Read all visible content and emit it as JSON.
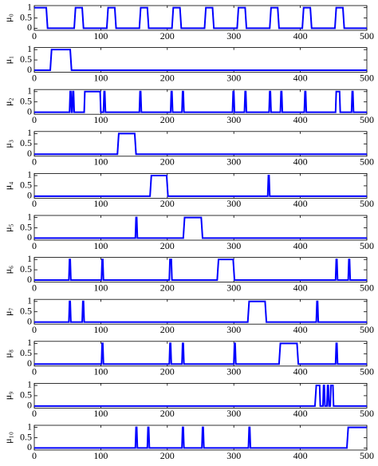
{
  "chart_data": [
    {
      "type": "line",
      "ylabel": "μ₀",
      "xlim": [
        0,
        500
      ],
      "ylim": [
        -0.1,
        1.1
      ],
      "xticks": [
        0,
        100,
        200,
        300,
        400,
        500
      ],
      "yticks": [
        0,
        0.5,
        1
      ],
      "x": [
        0,
        18,
        20,
        60,
        62,
        72,
        74,
        109,
        111,
        121,
        123,
        158,
        160,
        170,
        172,
        207,
        209,
        219,
        221,
        256,
        258,
        268,
        270,
        305,
        307,
        317,
        319,
        354,
        356,
        366,
        368,
        403,
        405,
        415,
        417,
        452,
        454,
        464,
        466,
        500
      ],
      "series": [
        {
          "color": "#0000ff",
          "values": [
            1,
            1,
            0,
            0,
            1,
            1,
            0,
            0,
            1,
            1,
            0,
            0,
            1,
            1,
            0,
            0,
            1,
            1,
            0,
            0,
            1,
            1,
            0,
            0,
            1,
            1,
            0,
            0,
            1,
            1,
            0,
            0,
            1,
            1,
            0,
            0,
            1,
            1,
            0,
            0
          ]
        }
      ]
    },
    {
      "type": "line",
      "ylabel": "μ₁",
      "xlim": [
        0,
        500
      ],
      "ylim": [
        -0.1,
        1.1
      ],
      "xticks": [
        0,
        100,
        200,
        300,
        400,
        500
      ],
      "yticks": [
        0,
        0.5,
        1
      ],
      "x": [
        0,
        24,
        26,
        54,
        56,
        500
      ],
      "series": [
        {
          "color": "#0000ff",
          "values": [
            0,
            0,
            1,
            1,
            0,
            0
          ]
        }
      ]
    },
    {
      "type": "line",
      "ylabel": "μ₂",
      "xlim": [
        0,
        500
      ],
      "ylim": [
        -0.1,
        1.1
      ],
      "xticks": [
        0,
        100,
        200,
        300,
        400,
        500
      ],
      "yticks": [
        0,
        0.5,
        1
      ],
      "x": [
        0,
        53,
        54,
        55,
        56,
        57,
        58,
        59,
        60,
        75,
        76,
        99,
        100,
        104,
        105,
        106,
        107,
        158,
        159,
        160,
        161,
        205,
        206,
        207,
        208,
        222,
        223,
        224,
        225,
        298,
        299,
        300,
        301,
        316,
        317,
        318,
        319,
        353,
        354,
        355,
        356,
        370,
        371,
        372,
        373,
        406,
        407,
        408,
        409,
        453,
        454,
        459,
        460,
        477,
        478,
        479,
        480,
        500
      ],
      "series": [
        {
          "color": "#0000ff",
          "values": [
            0,
            0,
            1,
            1,
            0,
            0,
            1,
            1,
            0,
            0,
            1,
            1,
            0,
            0,
            1,
            1,
            0,
            0,
            1,
            1,
            0,
            0,
            1,
            1,
            0,
            0,
            1,
            1,
            0,
            0,
            1,
            1,
            0,
            0,
            1,
            1,
            0,
            0,
            1,
            1,
            0,
            0,
            1,
            1,
            0,
            0,
            1,
            1,
            0,
            0,
            1,
            1,
            0,
            0,
            1,
            1,
            0,
            0
          ]
        }
      ]
    },
    {
      "type": "line",
      "ylabel": "μ₃",
      "xlim": [
        0,
        500
      ],
      "ylim": [
        -0.1,
        1.1
      ],
      "xticks": [
        0,
        100,
        200,
        300,
        400,
        500
      ],
      "yticks": [
        0,
        0.5,
        1
      ],
      "x": [
        0,
        125,
        127,
        151,
        153,
        500
      ],
      "series": [
        {
          "color": "#0000ff",
          "values": [
            0,
            0,
            1,
            1,
            0,
            0
          ]
        }
      ]
    },
    {
      "type": "line",
      "ylabel": "μ₄",
      "xlim": [
        0,
        500
      ],
      "ylim": [
        -0.1,
        1.1
      ],
      "xticks": [
        0,
        100,
        200,
        300,
        400,
        500
      ],
      "yticks": [
        0,
        0.5,
        1
      ],
      "x": [
        0,
        174,
        176,
        199,
        201,
        351,
        352,
        353,
        354,
        500
      ],
      "series": [
        {
          "color": "#0000ff",
          "values": [
            0,
            0,
            1,
            1,
            0,
            0,
            1,
            1,
            0,
            0
          ]
        }
      ]
    },
    {
      "type": "line",
      "ylabel": "μ₅",
      "xlim": [
        0,
        500
      ],
      "ylim": [
        -0.1,
        1.1
      ],
      "xticks": [
        0,
        100,
        200,
        300,
        400,
        500
      ],
      "yticks": [
        0,
        0.5,
        1
      ],
      "x": [
        0,
        152,
        153,
        154,
        155,
        224,
        226,
        251,
        253,
        500
      ],
      "series": [
        {
          "color": "#0000ff",
          "values": [
            0,
            0,
            1,
            1,
            0,
            0,
            1,
            1,
            0,
            0
          ]
        }
      ]
    },
    {
      "type": "line",
      "ylabel": "μ₆",
      "xlim": [
        0,
        500
      ],
      "ylim": [
        -0.1,
        1.1
      ],
      "xticks": [
        0,
        100,
        200,
        300,
        400,
        500
      ],
      "yticks": [
        0,
        0.5,
        1
      ],
      "x": [
        0,
        52,
        53,
        54,
        55,
        101,
        102,
        103,
        104,
        203,
        204,
        206,
        207,
        275,
        277,
        299,
        301,
        453,
        454,
        455,
        456,
        472,
        473,
        474,
        475,
        500
      ],
      "series": [
        {
          "color": "#0000ff",
          "values": [
            0,
            0,
            1,
            1,
            0,
            0,
            1,
            1,
            0,
            0,
            1,
            1,
            0,
            0,
            1,
            1,
            0,
            0,
            1,
            1,
            0,
            0,
            1,
            1,
            0,
            0
          ]
        }
      ]
    },
    {
      "type": "line",
      "ylabel": "μ₇",
      "xlim": [
        0,
        500
      ],
      "ylim": [
        -0.1,
        1.1
      ],
      "xticks": [
        0,
        100,
        200,
        300,
        400,
        500
      ],
      "yticks": [
        0,
        0.5,
        1
      ],
      "x": [
        0,
        52,
        53,
        54,
        55,
        72,
        73,
        74,
        75,
        321,
        323,
        347,
        349,
        424,
        425,
        426,
        427,
        500
      ],
      "series": [
        {
          "color": "#0000ff",
          "values": [
            0,
            0,
            1,
            1,
            0,
            0,
            1,
            1,
            0,
            0,
            1,
            1,
            0,
            0,
            1,
            1,
            0,
            0
          ]
        }
      ]
    },
    {
      "type": "line",
      "ylabel": "μ₈",
      "xlim": [
        0,
        500
      ],
      "ylim": [
        -0.1,
        1.1
      ],
      "xticks": [
        0,
        100,
        200,
        300,
        400,
        500
      ],
      "yticks": [
        0,
        0.5,
        1
      ],
      "x": [
        0,
        101,
        102,
        103,
        104,
        203,
        204,
        205,
        206,
        222,
        223,
        224,
        225,
        300,
        301,
        302,
        303,
        368,
        370,
        395,
        397,
        453,
        454,
        455,
        456,
        500
      ],
      "series": [
        {
          "color": "#0000ff",
          "values": [
            0,
            0,
            1,
            1,
            0,
            0,
            1,
            1,
            0,
            0,
            1,
            1,
            0,
            0,
            1,
            1,
            0,
            0,
            1,
            1,
            0,
            0,
            1,
            1,
            0,
            0
          ]
        }
      ]
    },
    {
      "type": "line",
      "ylabel": "μ₉",
      "xlim": [
        0,
        500
      ],
      "ylim": [
        -0.1,
        1.1
      ],
      "xticks": [
        0,
        100,
        200,
        300,
        400,
        500
      ],
      "yticks": [
        0,
        0.5,
        1
      ],
      "x": [
        0,
        422,
        424,
        429,
        430,
        434,
        435,
        436,
        437,
        440,
        441,
        442,
        443,
        445,
        446,
        449,
        450,
        500
      ],
      "series": [
        {
          "color": "#0000ff",
          "values": [
            0,
            0,
            1,
            1,
            0,
            0,
            1,
            1,
            0,
            0,
            1,
            1,
            0,
            0,
            1,
            1,
            0,
            0
          ]
        }
      ]
    },
    {
      "type": "line",
      "ylabel": "μ₁₀",
      "xlim": [
        0,
        500
      ],
      "ylim": [
        -0.1,
        1.1
      ],
      "xticks": [
        0,
        100,
        200,
        300,
        400,
        500
      ],
      "yticks": [
        0,
        0.5,
        1
      ],
      "x": [
        0,
        152,
        153,
        154,
        155,
        170,
        171,
        172,
        173,
        222,
        223,
        224,
        225,
        252,
        253,
        254,
        255,
        322,
        323,
        324,
        325,
        470,
        472,
        500
      ],
      "series": [
        {
          "color": "#0000ff",
          "values": [
            0,
            0,
            1,
            1,
            0,
            0,
            1,
            1,
            0,
            0,
            1,
            1,
            0,
            0,
            1,
            1,
            0,
            0,
            1,
            1,
            0,
            0,
            1,
            1
          ]
        }
      ]
    }
  ]
}
